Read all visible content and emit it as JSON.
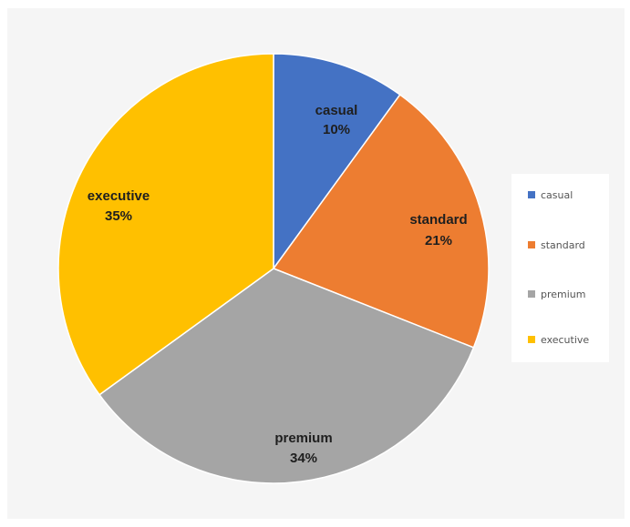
{
  "chart_data": {
    "type": "pie",
    "title": "",
    "categories": [
      "casual",
      "standard",
      "premium",
      "executive"
    ],
    "values": [
      10,
      21,
      34,
      35
    ],
    "value_labels": [
      "10%",
      "21%",
      "34%",
      "35%"
    ],
    "colors": [
      "#4472c4",
      "#ed7d31",
      "#a5a5a5",
      "#ffc000"
    ],
    "start_angle_deg": 0,
    "direction": "clockwise",
    "legend": {
      "placement": "right",
      "entries": [
        "casual",
        "standard",
        "premium",
        "executive"
      ]
    }
  }
}
